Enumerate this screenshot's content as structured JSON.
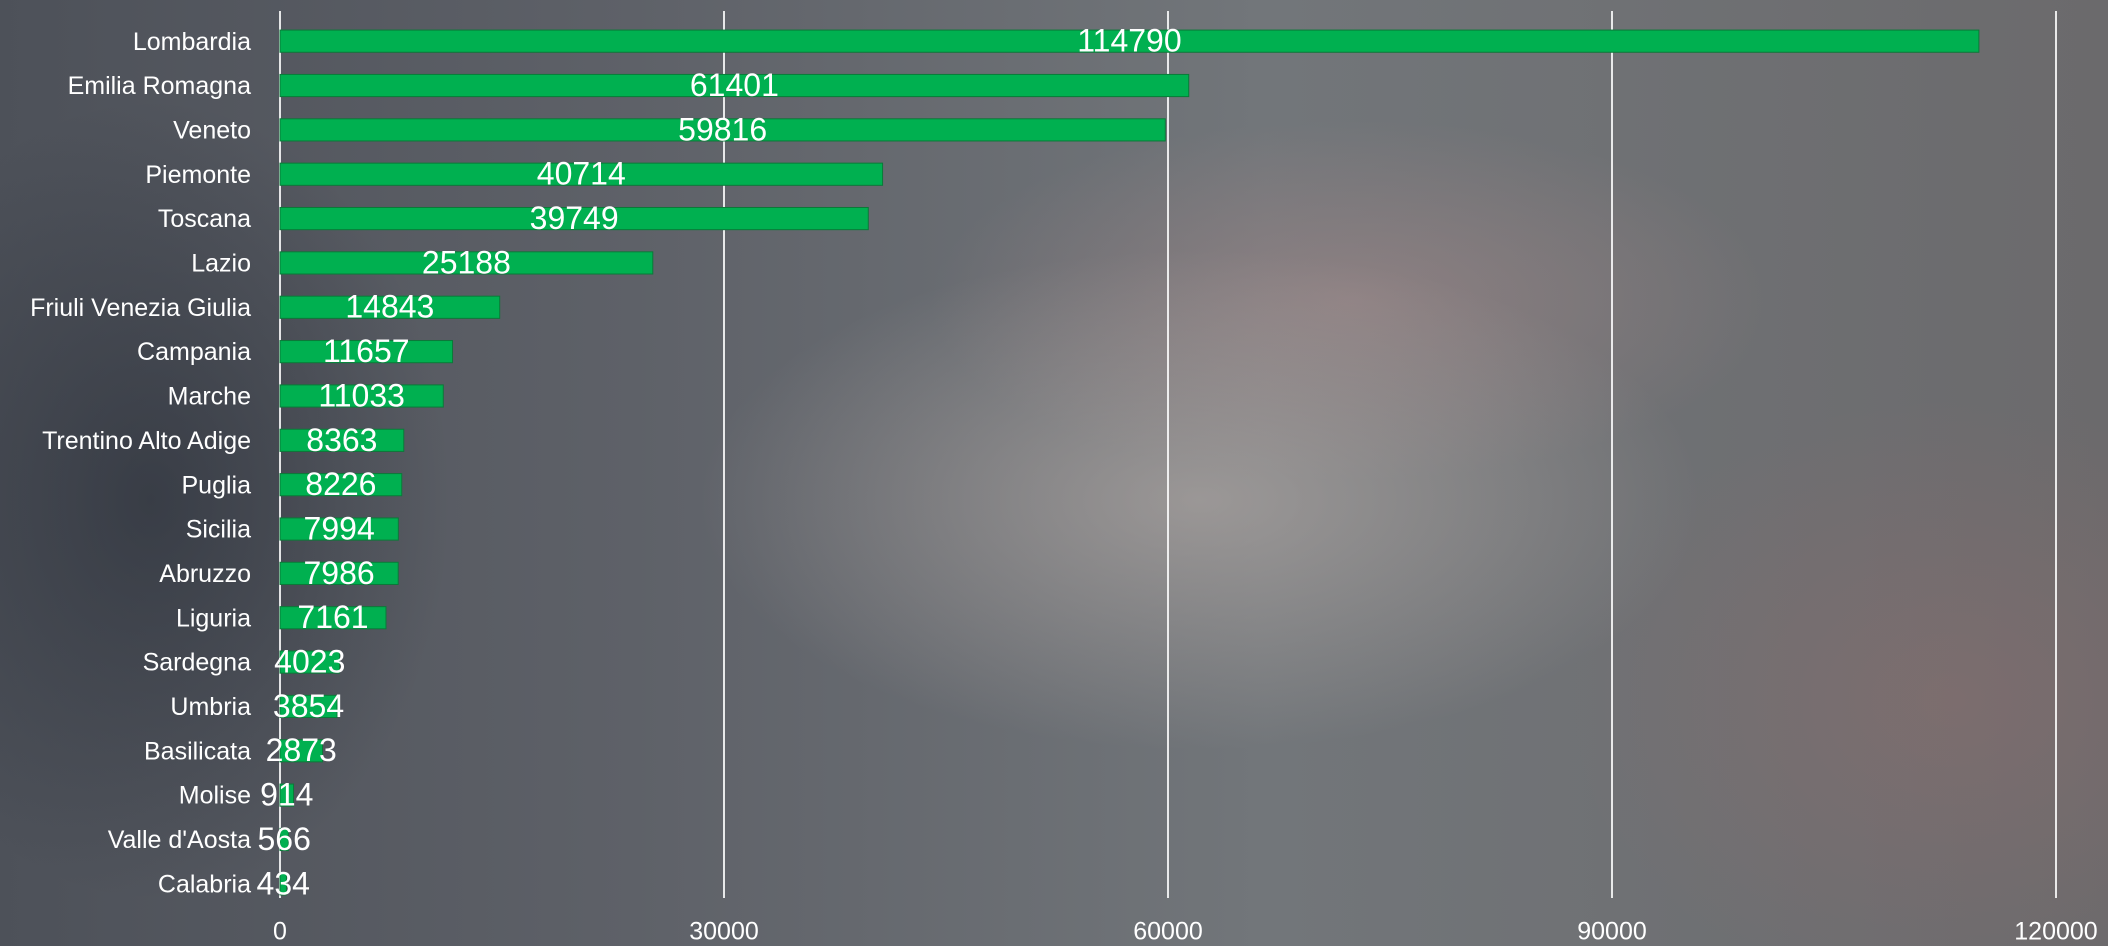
{
  "chart_data": {
    "type": "bar",
    "orientation": "horizontal",
    "categories": [
      "Lombardia",
      "Emilia Romagna",
      "Veneto",
      "Piemonte",
      "Toscana",
      "Lazio",
      "Friuli Venezia Giulia",
      "Campania",
      "Marche",
      "Trentino Alto Adige",
      "Puglia",
      "Sicilia",
      "Abruzzo",
      "Liguria",
      "Sardegna",
      "Umbria",
      "Basilicata",
      "Molise",
      "Valle d'Aosta",
      "Calabria"
    ],
    "values": [
      114790,
      61401,
      59816,
      40714,
      39749,
      25188,
      14843,
      11657,
      11033,
      8363,
      8226,
      7994,
      7986,
      7161,
      4023,
      3854,
      2873,
      914,
      566,
      434
    ],
    "color": "#00b050",
    "xlim": [
      0,
      120000
    ],
    "xticks": [
      0,
      30000,
      60000,
      90000,
      120000
    ],
    "grid": true
  }
}
